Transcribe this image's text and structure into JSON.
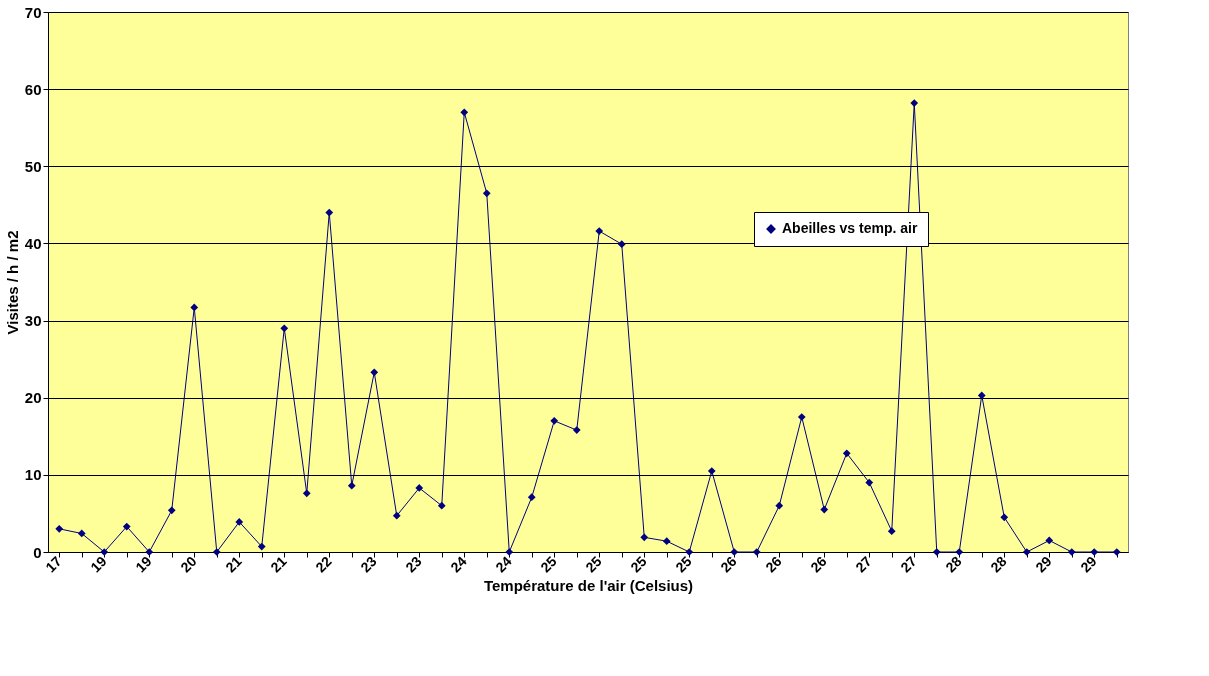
{
  "chart_data": {
    "type": "line",
    "xlabel": "Température de l'air (Celsius)",
    "ylabel": "Visites / h / m2",
    "categories": [
      "17",
      null,
      "19",
      null,
      "19",
      null,
      "20",
      null,
      "21",
      null,
      "21",
      null,
      "22",
      null,
      "23",
      null,
      "23",
      null,
      "24",
      null,
      "24",
      null,
      "25",
      null,
      "25",
      null,
      "25",
      null,
      "25",
      null,
      "26",
      null,
      "26",
      null,
      "26",
      null,
      "27",
      null,
      "27",
      null,
      "28",
      null,
      "28",
      null,
      "29",
      null,
      "29",
      null
    ],
    "series": [
      {
        "name": "Abeilles vs temp. air",
        "color": "#000080",
        "values": [
          3.0,
          2.4,
          0,
          3.3,
          0,
          5.4,
          31.7,
          0,
          3.9,
          0.7,
          29,
          7.6,
          44,
          8.6,
          23.3,
          4.7,
          8.3,
          6.0,
          57,
          46.5,
          0,
          7.1,
          17,
          15.8,
          41.6,
          39.9,
          1.9,
          1.4,
          0,
          10.5,
          0,
          0,
          6.0,
          17.5,
          5.5,
          12.8,
          9.0,
          2.7,
          58.2,
          0,
          0,
          20.3,
          4.5,
          0,
          1.5,
          0,
          0,
          0
        ]
      }
    ],
    "ylim": [
      0,
      70
    ],
    "yticks": [
      0,
      10,
      20,
      30,
      40,
      50,
      60,
      70
    ],
    "grid": "y",
    "legend": "top right",
    "marker": "diamond",
    "line_style": "solid"
  }
}
